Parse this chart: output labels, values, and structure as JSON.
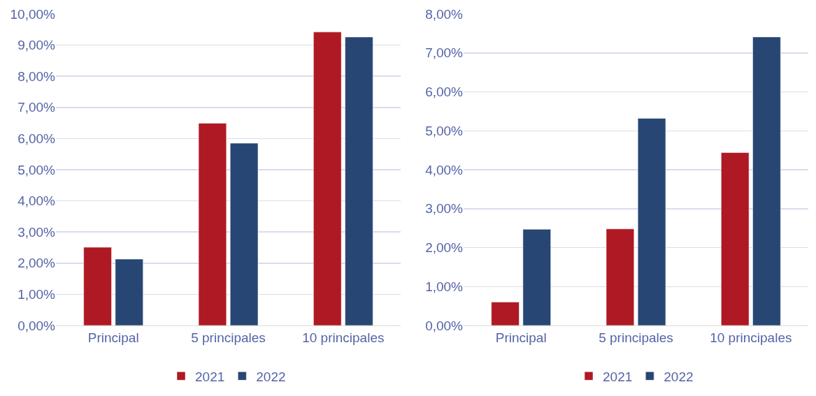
{
  "chart_data": [
    {
      "type": "bar",
      "categories": [
        "Principal",
        "5 principales",
        "10 principales"
      ],
      "series": [
        {
          "name": "2021",
          "color": "#ae1923",
          "values": [
            2.51,
            6.49,
            9.42
          ]
        },
        {
          "name": "2022",
          "color": "#274673",
          "values": [
            2.13,
            5.85,
            9.26
          ]
        }
      ],
      "ylim": [
        0,
        10
      ],
      "yticks": [
        {
          "value": 0,
          "label": "0,00%"
        },
        {
          "value": 1,
          "label": "1,00%"
        },
        {
          "value": 2,
          "label": "2,00%"
        },
        {
          "value": 3,
          "label": "3,00%"
        },
        {
          "value": 4,
          "label": "4,00%"
        },
        {
          "value": 5,
          "label": "5,00%"
        },
        {
          "value": 6,
          "label": "6,00%"
        },
        {
          "value": 7,
          "label": "7,00%"
        },
        {
          "value": 8,
          "label": "8,00%"
        },
        {
          "value": 9,
          "label": "9,00%"
        },
        {
          "value": 10,
          "label": "10,00%"
        }
      ],
      "grid": "y",
      "legend": "bottom"
    },
    {
      "type": "bar",
      "categories": [
        "Principal",
        "5 principales",
        "10 principales"
      ],
      "series": [
        {
          "name": "2021",
          "color": "#ae1923",
          "values": [
            0.6,
            2.48,
            4.44
          ]
        },
        {
          "name": "2022",
          "color": "#274673",
          "values": [
            2.47,
            5.32,
            7.41
          ]
        }
      ],
      "ylim": [
        0,
        8
      ],
      "yticks": [
        {
          "value": 0,
          "label": "0,00%"
        },
        {
          "value": 1,
          "label": "1,00%"
        },
        {
          "value": 2,
          "label": "2,00%"
        },
        {
          "value": 3,
          "label": "3,00%"
        },
        {
          "value": 4,
          "label": "4,00%"
        },
        {
          "value": 5,
          "label": "5,00%"
        },
        {
          "value": 6,
          "label": "6,00%"
        },
        {
          "value": 7,
          "label": "7,00%"
        },
        {
          "value": 8,
          "label": "8,00%"
        }
      ],
      "grid": "y",
      "legend": "bottom"
    }
  ]
}
